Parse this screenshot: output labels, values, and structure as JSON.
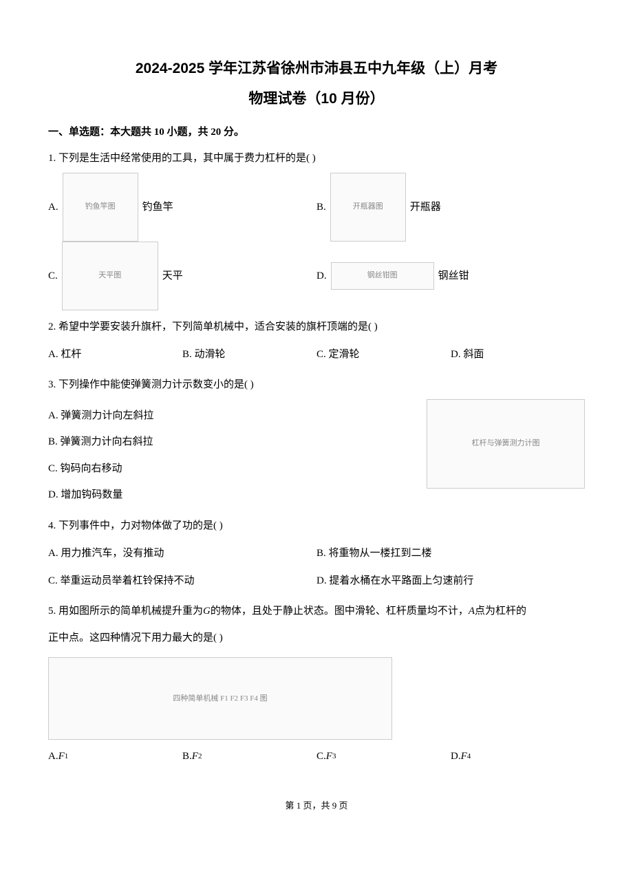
{
  "title": {
    "line1": "2024-2025 学年江苏省徐州市沛县五中九年级（上）月考",
    "line2": "物理试卷（10 月份）"
  },
  "section1_heading": "一、单选题：本大题共 10 小题，共 20 分。",
  "q1": {
    "stem": "1. 下列是生活中经常使用的工具，其中属于费力杠杆的是(    )",
    "labelA": "A.",
    "captionA": "钓鱼竿",
    "imgA_alt": "钓鱼竿图",
    "labelB": "B.",
    "captionB": "开瓶器",
    "imgB_alt": "开瓶器图",
    "labelC": "C.",
    "captionC": "天平",
    "imgC_alt": "天平图",
    "labelD": "D.",
    "captionD": "钢丝钳",
    "imgD_alt": "钢丝钳图"
  },
  "q2": {
    "stem": "2. 希望中学要安装升旗杆，下列简单机械中，适合安装的旗杆顶端的是(    )",
    "A": "A. 杠杆",
    "B": "B. 动滑轮",
    "C": "C. 定滑轮",
    "D": "D. 斜面"
  },
  "q3": {
    "stem": "3. 下列操作中能使弹簧测力计示数变小的是(    )",
    "A": "A. 弹簧测力计向左斜拉",
    "B": "B. 弹簧测力计向右斜拉",
    "C": "C. 钩码向右移动",
    "D": "D. 增加钩码数量",
    "fig_alt": "杠杆与弹簧测力计图"
  },
  "q4": {
    "stem": "4. 下列事件中，力对物体做了功的是(    )",
    "A": "A. 用力推汽车，没有推动",
    "B": "B. 将重物从一楼扛到二楼",
    "C": "C. 举重运动员举着杠铃保持不动",
    "D": "D. 提着水桶在水平路面上匀速前行"
  },
  "q5": {
    "stem_p1": "5. 用如图所示的简单机械提升重为",
    "G": "G",
    "stem_p2": "的物体，且处于静止状态。图中滑轮、杠杆质量均不计，",
    "A_italic": "A",
    "stem_p3": "点为杠杆的",
    "stem_p4": "正中点。这四种情况下用力最大的是(    )",
    "fig_alt": "四种简单机械 F1 F2 F3 F4 图",
    "labelA": "A. ",
    "FA": "F",
    "subA": "1",
    "labelB": "B. ",
    "FB": "F",
    "subB": "2",
    "labelC": "C. ",
    "FC": "F",
    "subC": "3",
    "labelD": "D. ",
    "FD": "F",
    "subD": "4"
  },
  "footer": "第 1 页，共 9 页"
}
